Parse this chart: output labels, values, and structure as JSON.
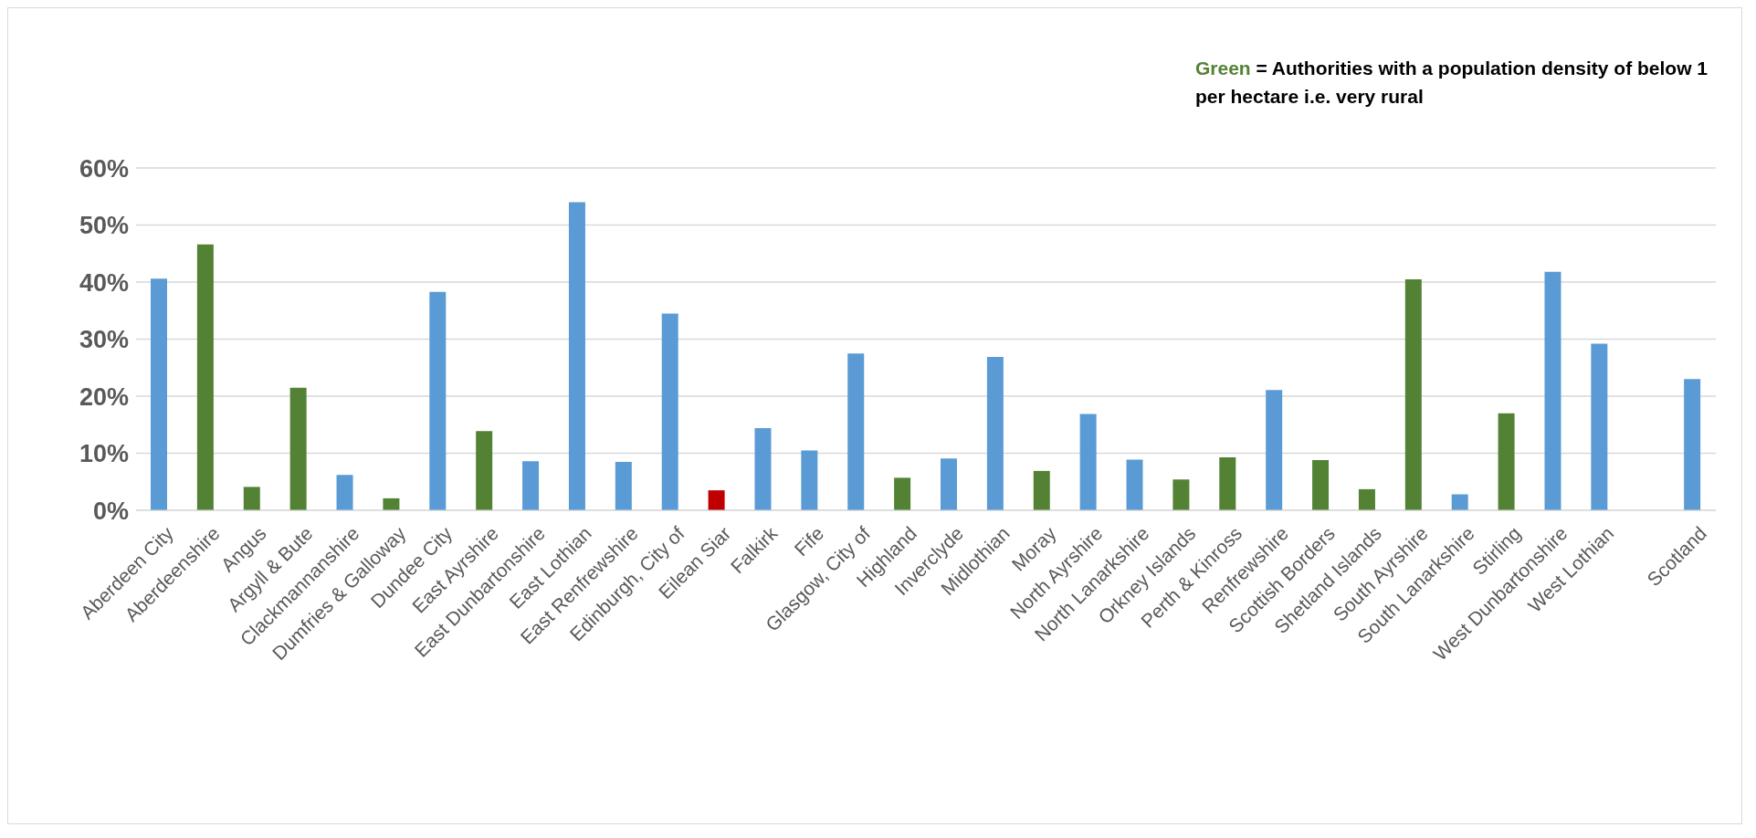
{
  "chart_data": {
    "type": "bar",
    "categories": [
      "Aberdeen City",
      "Aberdeenshire",
      "Angus",
      "Argyll & Bute",
      "Clackmannanshire",
      "Dumfries & Galloway",
      "Dundee City",
      "East Ayrshire",
      "East Dunbartonshire",
      "East Lothian",
      "East Renfrewshire",
      "Edinburgh, City of",
      "Eilean Siar",
      "Falkirk",
      "Fife",
      "Glasgow, City of",
      "Highland",
      "Inverclyde",
      "Midlothian",
      "Moray",
      "North Ayrshire",
      "North Lanarkshire",
      "Orkney Islands",
      "Perth & Kinross",
      "Renfrewshire",
      "Scottish Borders",
      "Shetland Islands",
      "South Ayrshire",
      "South Lanarkshire",
      "Stirling",
      "West Dunbartonshire",
      "West Lothian",
      null,
      "Scotland"
    ],
    "values": [
      40.6,
      46.6,
      4.1,
      21.5,
      6.2,
      2.1,
      38.3,
      13.9,
      8.6,
      54.0,
      8.5,
      34.5,
      3.5,
      14.4,
      10.5,
      27.5,
      5.7,
      9.1,
      26.9,
      6.9,
      16.9,
      8.9,
      5.4,
      9.3,
      21.1,
      8.8,
      3.7,
      40.5,
      2.8,
      17.0,
      41.8,
      29.2,
      null,
      23.0
    ],
    "colors": [
      "#5b9bd5",
      "#548235",
      "#548235",
      "#548235",
      "#5b9bd5",
      "#548235",
      "#5b9bd5",
      "#548235",
      "#5b9bd5",
      "#5b9bd5",
      "#5b9bd5",
      "#5b9bd5",
      "#c00000",
      "#5b9bd5",
      "#5b9bd5",
      "#5b9bd5",
      "#548235",
      "#5b9bd5",
      "#5b9bd5",
      "#548235",
      "#5b9bd5",
      "#5b9bd5",
      "#548235",
      "#548235",
      "#5b9bd5",
      "#548235",
      "#548235",
      "#548235",
      "#5b9bd5",
      "#548235",
      "#5b9bd5",
      "#5b9bd5",
      "#5b9bd5",
      "#5b9bd5"
    ],
    "ylim": [
      0,
      60
    ],
    "yticks": [
      {
        "value": 0,
        "label": "0%"
      },
      {
        "value": 10,
        "label": "10%"
      },
      {
        "value": 20,
        "label": "20%"
      },
      {
        "value": 30,
        "label": "30%"
      },
      {
        "value": 40,
        "label": "40%"
      },
      {
        "value": 50,
        "label": "50%"
      },
      {
        "value": 60,
        "label": "60%"
      }
    ],
    "grid": "y",
    "annotations": [
      "Green = Authorities with a population density of below 1 per hectare i.e. very rural"
    ]
  }
}
